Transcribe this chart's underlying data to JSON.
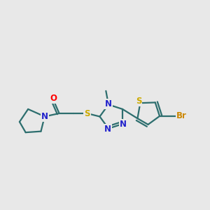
{
  "bg_color": "#e8e8e8",
  "bond_color": "#2d6e6e",
  "bond_width": 1.6,
  "atom_colors": {
    "O": "#ff0000",
    "N": "#2222cc",
    "S": "#ccaa00",
    "Br": "#cc8800",
    "C": "#2d6e6e"
  },
  "font_size": 8.5,
  "fig_width": 3.0,
  "fig_height": 3.0,
  "dpi": 100,
  "xlim": [
    0,
    10
  ],
  "ylim": [
    2.5,
    8.5
  ]
}
